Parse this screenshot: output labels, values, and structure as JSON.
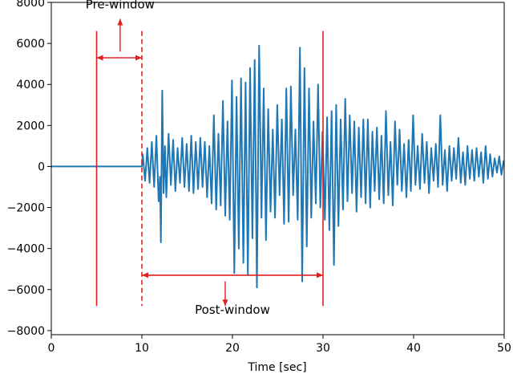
{
  "chart_data": {
    "type": "line",
    "title": "",
    "xlabel": "Time [sec]",
    "ylabel": "",
    "xlim": [
      0,
      50
    ],
    "ylim": [
      -8200,
      8000
    ],
    "x_ticks": [
      "0",
      "10",
      "20",
      "30",
      "40",
      "50"
    ],
    "y_ticks": [
      "8000",
      "6000",
      "4000",
      "2000",
      "0",
      "−2000",
      "−4000",
      "−6000",
      "−8000"
    ],
    "grid": false,
    "series": [
      {
        "color": "#1f77b4",
        "x": [
          0,
          10,
          10.1,
          10.35,
          10.6,
          10.85,
          11.1,
          11.35,
          11.6,
          11.85,
          12.0,
          12.1,
          12.25,
          12.4,
          12.55,
          12.7,
          12.95,
          13.2,
          13.45,
          13.7,
          13.95,
          14.2,
          14.45,
          14.7,
          14.95,
          15.2,
          15.45,
          15.7,
          15.95,
          16.2,
          16.45,
          16.7,
          16.95,
          17.2,
          17.45,
          17.7,
          17.95,
          18.2,
          18.45,
          18.7,
          18.95,
          19.2,
          19.45,
          19.7,
          19.95,
          20.2,
          20.45,
          20.7,
          20.95,
          21.2,
          21.45,
          21.7,
          21.95,
          22.2,
          22.45,
          22.7,
          22.95,
          23.2,
          23.45,
          23.7,
          23.95,
          24.2,
          24.45,
          24.7,
          24.95,
          25.2,
          25.45,
          25.7,
          25.95,
          26.2,
          26.45,
          26.7,
          26.95,
          27.2,
          27.45,
          27.7,
          27.95,
          28.2,
          28.45,
          28.7,
          28.95,
          29.2,
          29.45,
          29.7,
          29.95,
          30.2,
          30.45,
          30.7,
          30.95,
          31.2,
          31.45,
          31.7,
          31.95,
          32.2,
          32.45,
          32.7,
          32.95,
          33.2,
          33.45,
          33.7,
          33.95,
          34.2,
          34.45,
          34.7,
          34.95,
          35.2,
          35.45,
          35.7,
          35.95,
          36.2,
          36.45,
          36.7,
          36.95,
          37.2,
          37.45,
          37.7,
          37.95,
          38.2,
          38.45,
          38.7,
          38.95,
          39.2,
          39.45,
          39.7,
          39.95,
          40.2,
          40.45,
          40.7,
          40.95,
          41.2,
          41.45,
          41.7,
          41.95,
          42.2,
          42.45,
          42.7,
          42.95,
          43.2,
          43.45,
          43.7,
          43.95,
          44.2,
          44.45,
          44.7,
          44.95,
          45.2,
          45.45,
          45.7,
          45.95,
          46.2,
          46.45,
          46.7,
          46.95,
          47.2,
          47.45,
          47.7,
          47.95,
          48.2,
          48.45,
          48.7,
          48.95,
          49.2,
          49.45,
          49.7,
          49.95
        ],
        "values": [
          0,
          0,
          600,
          -700,
          900,
          -800,
          1200,
          -1000,
          1500,
          -1700,
          -500,
          -3700,
          3700,
          -1300,
          1000,
          -1500,
          1600,
          -900,
          1300,
          -1200,
          900,
          -800,
          1400,
          -1000,
          1100,
          -1200,
          1500,
          -1300,
          1200,
          -1100,
          1400,
          -1000,
          1200,
          -1500,
          1000,
          -1800,
          2500,
          -2100,
          1600,
          -1900,
          3200,
          -2400,
          2200,
          -2600,
          4200,
          -5200,
          3400,
          -4000,
          4300,
          -4700,
          4100,
          -5300,
          4800,
          -3500,
          5200,
          -5900,
          5900,
          -2500,
          3800,
          -3600,
          2800,
          -2200,
          1800,
          -2500,
          3000,
          -1400,
          2300,
          -2800,
          3800,
          -2700,
          3900,
          -1400,
          1800,
          -2600,
          5800,
          -5600,
          4800,
          -3900,
          3800,
          -2500,
          2200,
          -1800,
          4000,
          -2000,
          1700,
          -2600,
          2400,
          -3100,
          2700,
          -4800,
          3000,
          -2900,
          2300,
          -2100,
          3300,
          -1700,
          2500,
          -1300,
          2200,
          -2200,
          1900,
          -1500,
          2300,
          -1800,
          2300,
          -2000,
          1700,
          -1200,
          1900,
          -1600,
          1500,
          -1800,
          2700,
          -1400,
          1200,
          -1900,
          2200,
          -900,
          1800,
          -1200,
          1100,
          -1500,
          1300,
          -1200,
          2500,
          -900,
          1000,
          -1100,
          1600,
          -800,
          1200,
          -1300,
          900,
          -700,
          1100,
          -1000,
          2500,
          -900,
          800,
          -1200,
          1000,
          -700,
          900,
          -600,
          1400,
          -800,
          700,
          -900,
          1000,
          -600,
          800,
          -700,
          900,
          -500,
          700,
          -800,
          1000,
          -600,
          600,
          -500,
          400,
          -300,
          500,
          -400,
          300
        ]
      }
    ],
    "annotations": [
      {
        "text": "Pre-window",
        "x": 7.6,
        "y": 7700
      },
      {
        "text": "Post-window",
        "x": 20.0,
        "y": -7180
      }
    ],
    "vlines": [
      {
        "x": 5,
        "style": "solid",
        "ymin": -6800,
        "ymax": 6600
      },
      {
        "x": 10,
        "style": "dashed",
        "ymin": -6800,
        "ymax": 6600
      },
      {
        "x": 30,
        "style": "solid",
        "ymin": -6800,
        "ymax": 6600
      }
    ],
    "arrows": [
      {
        "kind": "double",
        "x1": 5,
        "x2": 10,
        "y": 5300
      },
      {
        "kind": "single",
        "x1": 7.6,
        "y1": 5600,
        "x2": 7.6,
        "y2": 7200
      },
      {
        "kind": "double",
        "x1": 10,
        "x2": 30,
        "y": -5300
      },
      {
        "kind": "single",
        "x1": 19.2,
        "y1": -5600,
        "x2": 19.2,
        "y2": -6800
      }
    ],
    "colors": {
      "line": "#1f77b4",
      "annotation": "#e02020"
    }
  }
}
